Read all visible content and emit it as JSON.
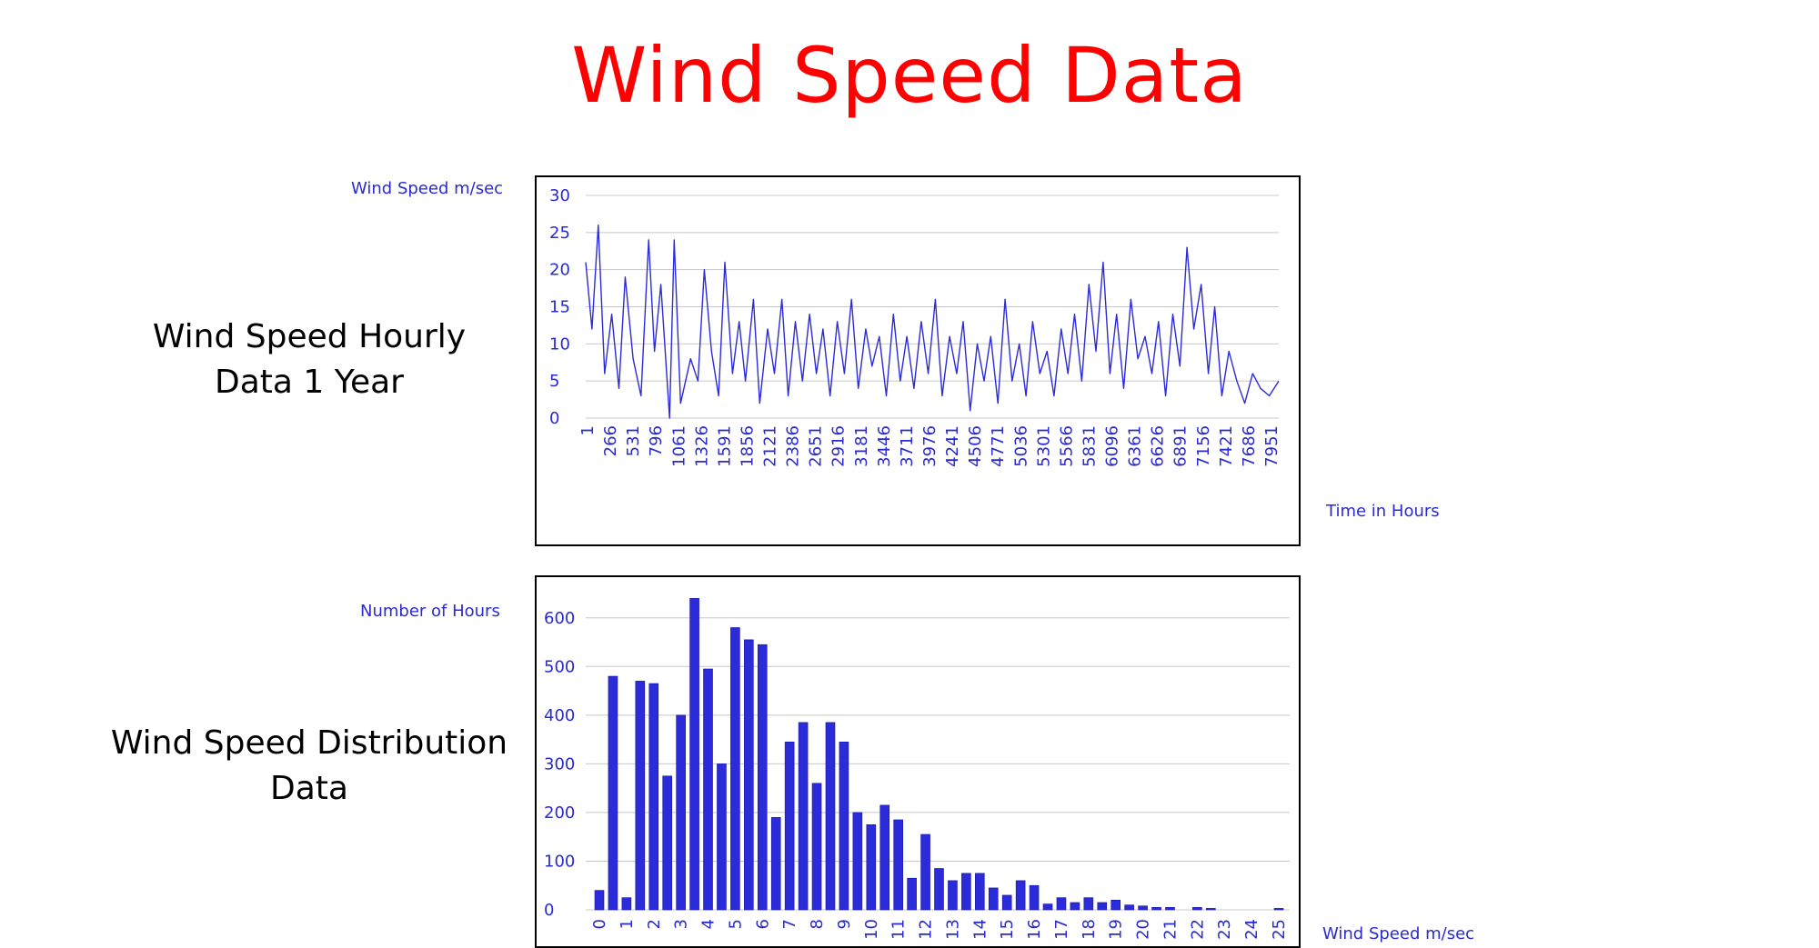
{
  "page": {
    "title": "Wind Speed Data",
    "hourly_label": "Wind Speed Hourly Data 1 Year",
    "distribution_label": "Wind Speed Distribution Data"
  },
  "colors": {
    "title": "#ff0000",
    "series": "#2b2bd9",
    "text": "#2a2ad0",
    "grid": "#c8c8c8"
  },
  "chart_data": [
    {
      "type": "line",
      "ylabel": "Wind Speed m/sec",
      "xlabel": "Time in Hours",
      "ylim": [
        0,
        30
      ],
      "yticks": [
        0,
        5,
        10,
        15,
        20,
        25,
        30
      ],
      "xticks": [
        "1",
        "266",
        "531",
        "796",
        "1061",
        "1326",
        "1591",
        "1856",
        "2121",
        "2386",
        "2651",
        "2916",
        "3181",
        "3446",
        "3711",
        "3976",
        "4241",
        "4506",
        "4771",
        "5036",
        "5301",
        "5566",
        "5831",
        "6096",
        "6361",
        "6626",
        "6891",
        "7156",
        "7421",
        "7686",
        "7951"
      ],
      "xlim": [
        1,
        8760
      ],
      "grid": true,
      "series": [
        {
          "x": [
            1,
            80,
            160,
            240,
            330,
            420,
            500,
            600,
            700,
            796,
            870,
            950,
            1061,
            1120,
            1200,
            1326,
            1420,
            1500,
            1591,
            1680,
            1760,
            1856,
            1940,
            2020,
            2121,
            2200,
            2300,
            2386,
            2480,
            2560,
            2651,
            2740,
            2830,
            2916,
            3000,
            3090,
            3181,
            3270,
            3360,
            3446,
            3540,
            3620,
            3711,
            3800,
            3890,
            3976,
            4060,
            4150,
            4241,
            4330,
            4420,
            4506,
            4600,
            4690,
            4771,
            4860,
            4950,
            5036,
            5120,
            5210,
            5301,
            5390,
            5480,
            5566,
            5650,
            5740,
            5831,
            5920,
            6010,
            6096,
            6180,
            6270,
            6361,
            6450,
            6540,
            6626,
            6710,
            6800,
            6891,
            6980,
            7070,
            7156,
            7240,
            7330,
            7421,
            7510,
            7600,
            7686,
            7780,
            7870,
            7951,
            8040,
            8130,
            8230,
            8330,
            8430,
            8530,
            8640,
            8760
          ],
          "values": [
            21,
            12,
            26,
            6,
            14,
            4,
            19,
            8,
            3,
            24,
            9,
            18,
            0,
            24,
            2,
            8,
            5,
            20,
            9,
            3,
            21,
            6,
            13,
            5,
            16,
            2,
            12,
            6,
            16,
            3,
            13,
            5,
            14,
            6,
            12,
            3,
            13,
            6,
            16,
            4,
            12,
            7,
            11,
            3,
            14,
            5,
            11,
            4,
            13,
            6,
            16,
            3,
            11,
            6,
            13,
            1,
            10,
            5,
            11,
            2,
            16,
            5,
            10,
            3,
            13,
            6,
            9,
            3,
            12,
            6,
            14,
            5,
            18,
            9,
            21,
            6,
            14,
            4,
            16,
            8,
            11,
            6,
            13,
            3,
            14,
            7,
            23,
            12,
            18,
            6,
            15,
            3,
            9,
            5,
            2,
            6,
            4,
            3,
            5
          ]
        }
      ]
    },
    {
      "type": "bar",
      "ylabel": "Number of Hours",
      "xlabel": "Wind Speed m/sec",
      "ylim": [
        0,
        650
      ],
      "yticks": [
        0,
        100,
        200,
        300,
        400,
        500,
        600
      ],
      "xtick_labels": [
        "0",
        "1",
        "2",
        "3",
        "4",
        "5",
        "6",
        "7",
        "8",
        "9",
        "10",
        "11",
        "12",
        "13",
        "14",
        "15",
        "16",
        "17",
        "18",
        "19",
        "20",
        "21",
        "22",
        "23",
        "24",
        "25"
      ],
      "grid": true,
      "categories": [
        0,
        0.5,
        1,
        1.5,
        2,
        2.5,
        3,
        3.5,
        4,
        4.5,
        5,
        5.5,
        6,
        6.5,
        7,
        7.5,
        8,
        8.5,
        9,
        9.5,
        10,
        10.5,
        11,
        11.5,
        12,
        12.5,
        13,
        13.5,
        14,
        14.5,
        15,
        15.5,
        16,
        16.5,
        17,
        17.5,
        18,
        18.5,
        19,
        19.5,
        20,
        20.5,
        21,
        21.5,
        22,
        22.5,
        23,
        23.5,
        24,
        24.5,
        25
      ],
      "values": [
        40,
        480,
        25,
        470,
        465,
        275,
        400,
        640,
        495,
        300,
        580,
        555,
        545,
        190,
        345,
        385,
        260,
        385,
        345,
        200,
        175,
        215,
        185,
        65,
        155,
        85,
        60,
        75,
        75,
        45,
        30,
        60,
        50,
        12,
        25,
        15,
        25,
        15,
        20,
        10,
        8,
        5,
        5,
        0,
        5,
        3,
        0,
        0,
        0,
        0,
        3
      ]
    }
  ]
}
